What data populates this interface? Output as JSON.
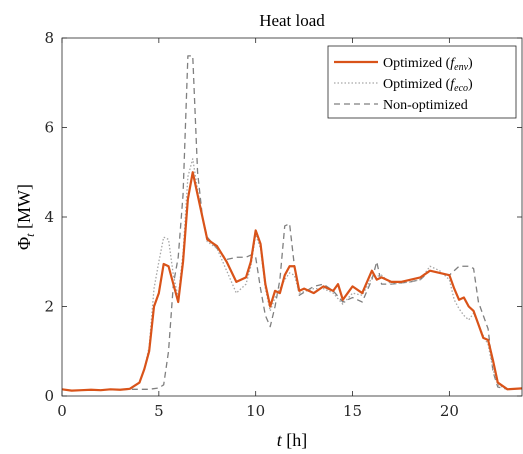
{
  "chart_data": {
    "type": "line",
    "title": "Heat load",
    "xlabel": "t [h]",
    "ylabel": "Φ_t [MW]",
    "xlim": [
      0,
      23.75
    ],
    "ylim": [
      0,
      8
    ],
    "xticks": [
      0,
      5,
      10,
      15,
      20
    ],
    "yticks": [
      0,
      2,
      4,
      6,
      8
    ],
    "grid": false,
    "legend_position": "top-right",
    "series": [
      {
        "name": "Optimized (f_env)",
        "label_base": "Optimized (",
        "label_italic": "f",
        "label_sub": "env",
        "label_end": ")",
        "color": "#d95319",
        "style": "solid",
        "points": [
          [
            0,
            0.15
          ],
          [
            0.5,
            0.12
          ],
          [
            1,
            0.13
          ],
          [
            1.5,
            0.14
          ],
          [
            2,
            0.13
          ],
          [
            2.5,
            0.15
          ],
          [
            3,
            0.14
          ],
          [
            3.5,
            0.16
          ],
          [
            4,
            0.3
          ],
          [
            4.25,
            0.6
          ],
          [
            4.5,
            1.0
          ],
          [
            4.75,
            2.0
          ],
          [
            5,
            2.3
          ],
          [
            5.25,
            2.95
          ],
          [
            5.5,
            2.9
          ],
          [
            5.75,
            2.5
          ],
          [
            6,
            2.1
          ],
          [
            6.25,
            3.0
          ],
          [
            6.5,
            4.4
          ],
          [
            6.75,
            5.0
          ],
          [
            7,
            4.5
          ],
          [
            7.25,
            4.0
          ],
          [
            7.5,
            3.5
          ],
          [
            8,
            3.35
          ],
          [
            8.5,
            3.0
          ],
          [
            9,
            2.55
          ],
          [
            9.5,
            2.65
          ],
          [
            9.75,
            3.0
          ],
          [
            10,
            3.7
          ],
          [
            10.25,
            3.4
          ],
          [
            10.5,
            2.5
          ],
          [
            10.75,
            2.0
          ],
          [
            11,
            2.35
          ],
          [
            11.25,
            2.3
          ],
          [
            11.5,
            2.7
          ],
          [
            11.75,
            2.9
          ],
          [
            12,
            2.9
          ],
          [
            12.25,
            2.35
          ],
          [
            12.5,
            2.4
          ],
          [
            13,
            2.3
          ],
          [
            13.5,
            2.45
          ],
          [
            14,
            2.35
          ],
          [
            14.25,
            2.5
          ],
          [
            14.5,
            2.15
          ],
          [
            14.75,
            2.3
          ],
          [
            15,
            2.45
          ],
          [
            15.5,
            2.3
          ],
          [
            16,
            2.8
          ],
          [
            16.25,
            2.6
          ],
          [
            16.5,
            2.65
          ],
          [
            17,
            2.55
          ],
          [
            17.5,
            2.55
          ],
          [
            18,
            2.6
          ],
          [
            18.5,
            2.65
          ],
          [
            19,
            2.8
          ],
          [
            19.5,
            2.75
          ],
          [
            20,
            2.7
          ],
          [
            20.25,
            2.4
          ],
          [
            20.5,
            2.15
          ],
          [
            20.75,
            2.2
          ],
          [
            21,
            2.0
          ],
          [
            21.25,
            1.9
          ],
          [
            21.5,
            1.6
          ],
          [
            21.75,
            1.3
          ],
          [
            22,
            1.25
          ],
          [
            22.25,
            0.8
          ],
          [
            22.5,
            0.3
          ],
          [
            23,
            0.15
          ],
          [
            23.75,
            0.17
          ]
        ]
      },
      {
        "name": "Optimized (f_eco)",
        "label_base": "Optimized (",
        "label_italic": "f",
        "label_sub": "eco",
        "label_end": ")",
        "color": "#a6a6a6",
        "style": "dotted",
        "points": [
          [
            0,
            0.15
          ],
          [
            0.5,
            0.12
          ],
          [
            1,
            0.13
          ],
          [
            1.5,
            0.14
          ],
          [
            2,
            0.13
          ],
          [
            2.5,
            0.15
          ],
          [
            3,
            0.14
          ],
          [
            3.5,
            0.16
          ],
          [
            4,
            0.3
          ],
          [
            4.25,
            0.6
          ],
          [
            4.5,
            1.1
          ],
          [
            4.75,
            2.4
          ],
          [
            5,
            3.0
          ],
          [
            5.25,
            3.55
          ],
          [
            5.5,
            3.5
          ],
          [
            5.75,
            2.7
          ],
          [
            6,
            2.2
          ],
          [
            6.25,
            3.2
          ],
          [
            6.5,
            4.9
          ],
          [
            6.75,
            5.3
          ],
          [
            7,
            4.6
          ],
          [
            7.25,
            4.0
          ],
          [
            7.5,
            3.45
          ],
          [
            8,
            3.3
          ],
          [
            8.5,
            2.8
          ],
          [
            9,
            2.3
          ],
          [
            9.5,
            2.5
          ],
          [
            9.75,
            2.9
          ],
          [
            10,
            3.6
          ],
          [
            10.25,
            3.3
          ],
          [
            10.5,
            2.4
          ],
          [
            10.75,
            1.9
          ],
          [
            11,
            2.2
          ],
          [
            11.5,
            2.6
          ],
          [
            11.75,
            2.75
          ],
          [
            12,
            2.7
          ],
          [
            12.25,
            2.3
          ],
          [
            13,
            2.4
          ],
          [
            13.5,
            2.4
          ],
          [
            14,
            2.3
          ],
          [
            14.5,
            2.05
          ],
          [
            15,
            2.3
          ],
          [
            15.5,
            2.25
          ],
          [
            16,
            2.65
          ],
          [
            16.5,
            2.7
          ],
          [
            17,
            2.5
          ],
          [
            18,
            2.55
          ],
          [
            18.5,
            2.6
          ],
          [
            19,
            2.9
          ],
          [
            19.5,
            2.8
          ],
          [
            20,
            2.6
          ],
          [
            20.25,
            2.15
          ],
          [
            20.5,
            1.95
          ],
          [
            20.75,
            1.8
          ],
          [
            21,
            1.7
          ],
          [
            21.25,
            1.85
          ],
          [
            21.5,
            1.6
          ],
          [
            21.75,
            1.35
          ],
          [
            22,
            1.15
          ],
          [
            22.25,
            0.6
          ],
          [
            22.5,
            0.25
          ],
          [
            23,
            0.15
          ],
          [
            23.75,
            0.17
          ]
        ]
      },
      {
        "name": "Non-optimized",
        "label_base": "Non-optimized",
        "label_italic": "",
        "label_sub": "",
        "label_end": "",
        "color": "#7f7f7f",
        "style": "dashed",
        "points": [
          [
            0,
            0.15
          ],
          [
            0.5,
            0.12
          ],
          [
            1,
            0.13
          ],
          [
            1.5,
            0.14
          ],
          [
            2,
            0.13
          ],
          [
            2.5,
            0.15
          ],
          [
            3,
            0.14
          ],
          [
            3.5,
            0.15
          ],
          [
            4,
            0.15
          ],
          [
            4.5,
            0.15
          ],
          [
            5,
            0.18
          ],
          [
            5.25,
            0.25
          ],
          [
            5.5,
            1.0
          ],
          [
            5.75,
            2.5
          ],
          [
            6,
            3.1
          ],
          [
            6.25,
            4.5
          ],
          [
            6.5,
            7.6
          ],
          [
            6.75,
            7.6
          ],
          [
            7,
            5.0
          ],
          [
            7.25,
            4.0
          ],
          [
            7.5,
            3.55
          ],
          [
            8,
            3.3
          ],
          [
            8.5,
            3.05
          ],
          [
            9,
            3.1
          ],
          [
            9.5,
            3.1
          ],
          [
            9.75,
            3.15
          ],
          [
            10,
            3.1
          ],
          [
            10.25,
            2.4
          ],
          [
            10.5,
            1.8
          ],
          [
            10.75,
            1.55
          ],
          [
            11,
            2.0
          ],
          [
            11.25,
            2.6
          ],
          [
            11.5,
            3.8
          ],
          [
            11.75,
            3.85
          ],
          [
            12,
            2.9
          ],
          [
            12.25,
            2.25
          ],
          [
            13,
            2.45
          ],
          [
            13.5,
            2.5
          ],
          [
            14,
            2.35
          ],
          [
            14.5,
            2.1
          ],
          [
            15,
            2.2
          ],
          [
            15.5,
            2.1
          ],
          [
            16,
            2.6
          ],
          [
            16.25,
            3.0
          ],
          [
            16.5,
            2.5
          ],
          [
            17,
            2.5
          ],
          [
            18,
            2.55
          ],
          [
            18.5,
            2.6
          ],
          [
            19,
            2.8
          ],
          [
            19.5,
            2.75
          ],
          [
            20,
            2.7
          ],
          [
            20.5,
            2.9
          ],
          [
            21,
            2.9
          ],
          [
            21.25,
            2.85
          ],
          [
            21.5,
            2.1
          ],
          [
            21.75,
            1.8
          ],
          [
            22,
            1.5
          ],
          [
            22.25,
            0.55
          ],
          [
            22.5,
            0.2
          ],
          [
            23,
            0.15
          ],
          [
            23.75,
            0.17
          ]
        ]
      }
    ]
  }
}
